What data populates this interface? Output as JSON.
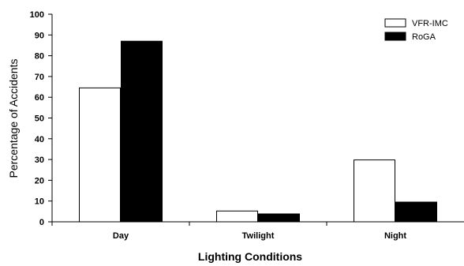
{
  "chart_data": {
    "type": "bar",
    "categories": [
      "Day",
      "Twilight",
      "Night"
    ],
    "series": [
      {
        "name": "VFR-IMC",
        "values": [
          64.5,
          5.2,
          29.8
        ],
        "color": "#ffffff"
      },
      {
        "name": "RoGA",
        "values": [
          87,
          3.8,
          9.5
        ],
        "color": "#000000"
      }
    ],
    "xlabel": "Lighting Conditions",
    "ylabel": "Percentage of Accidents",
    "ylim": [
      0,
      100
    ],
    "yticks": [
      0,
      10,
      20,
      30,
      40,
      50,
      60,
      70,
      80,
      90,
      100
    ],
    "grid": false,
    "legend_position": "top-right"
  }
}
